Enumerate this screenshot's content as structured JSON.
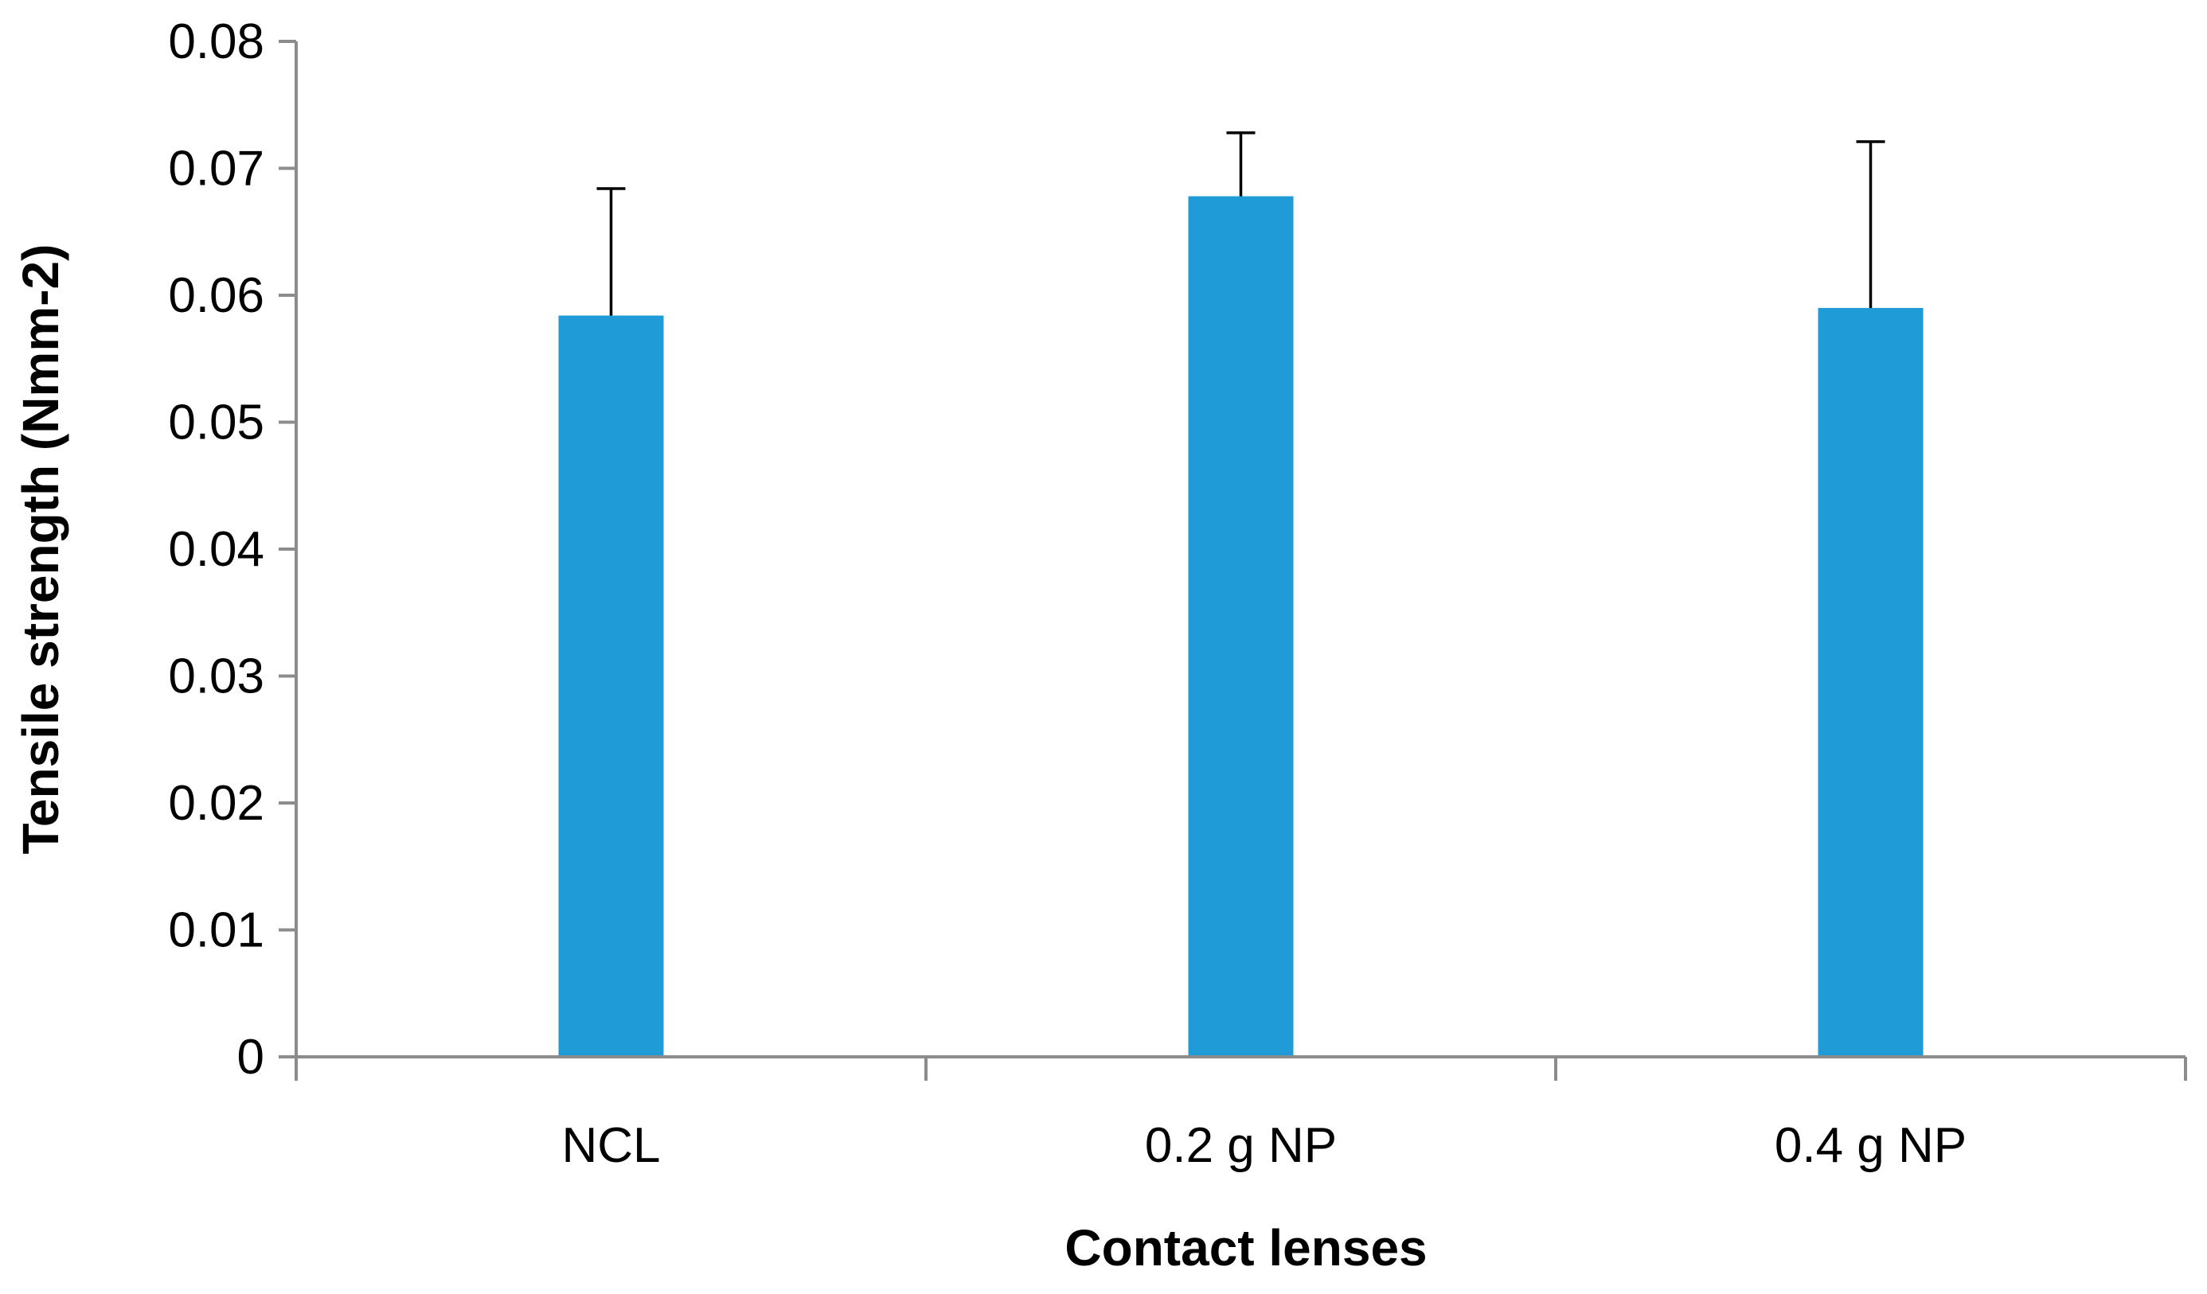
{
  "chart_data": {
    "type": "bar",
    "title": "",
    "xlabel": "Contact lenses",
    "ylabel": "Tensile strength (Nmm-2)",
    "categories": [
      "NCL",
      "0.2 g NP",
      "0.4 g NP"
    ],
    "series": [
      {
        "values": [
          0.0584,
          0.0678,
          0.059
        ],
        "error_plus": [
          0.01,
          0.005,
          0.0131
        ]
      }
    ],
    "ylim": [
      0,
      0.08
    ],
    "yticks": [
      "0",
      "0.01",
      "0.02",
      "0.03",
      "0.04",
      "0.05",
      "0.06",
      "0.07",
      "0.08"
    ],
    "grid": false,
    "legend": "none",
    "bar_color": "#1f9cd8",
    "axis_color": "#8c8c8c",
    "error_bar_color": "#000000"
  }
}
